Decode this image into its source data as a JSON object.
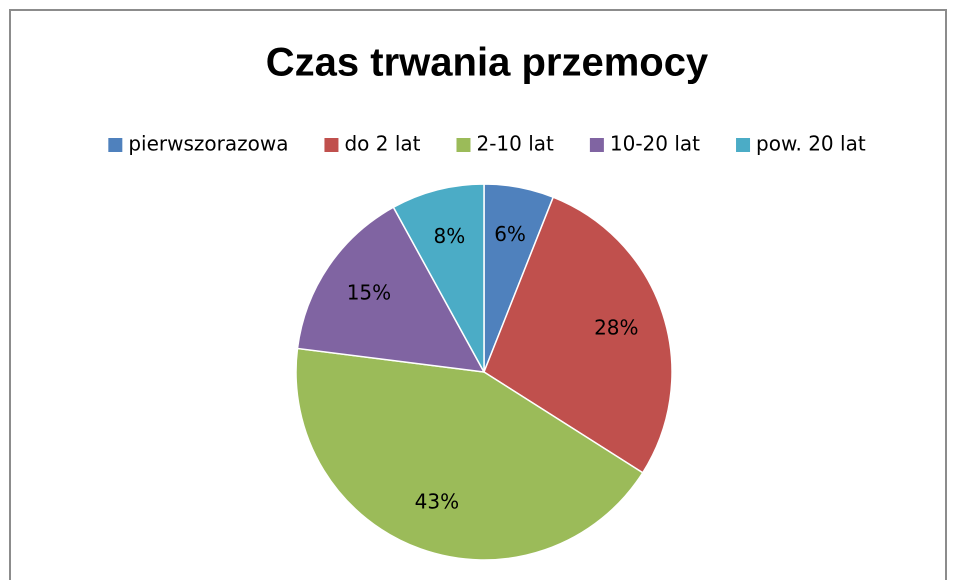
{
  "chart_data": {
    "type": "pie",
    "title": "Czas trwania przemocy",
    "categories": [
      "pierwszorazowa",
      "do 2 lat",
      "2-10 lat",
      "10-20 lat",
      "pow. 20 lat"
    ],
    "values": [
      6,
      28,
      43,
      15,
      8
    ],
    "value_labels": [
      "6%",
      "28%",
      "43%",
      "15%",
      "8%"
    ],
    "colors": [
      "#4f81bd",
      "#c0504d",
      "#9bbb59",
      "#8064a2",
      "#4bacc6"
    ],
    "legend": "top"
  }
}
